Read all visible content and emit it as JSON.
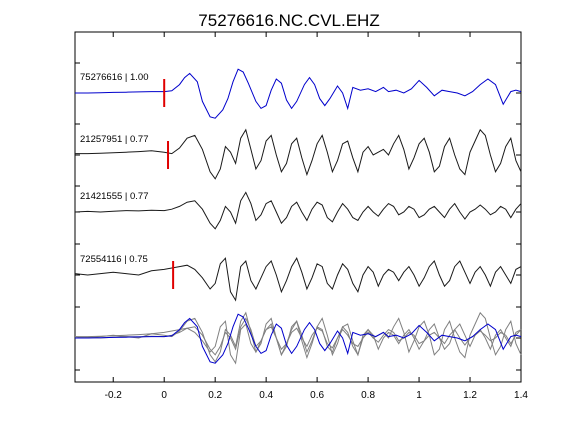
{
  "chart_data": {
    "type": "line",
    "title": "75276616.NC.CVL.EHZ",
    "xlabel": "",
    "ylabel": "",
    "xlim": [
      -0.35,
      1.4
    ],
    "x_ticks": [
      -0.2,
      0,
      0.2,
      0.4,
      0.6,
      0.8,
      1,
      1.2,
      1.4
    ],
    "x_tick_labels": [
      "-0.2",
      "0",
      "0.2",
      "0.4",
      "0.6",
      "0.8",
      "1",
      "1.2",
      "1.4"
    ],
    "grid": false,
    "legend": "none",
    "colors": {
      "reference": "#0000cc",
      "matched": "#1a1a1a",
      "overlay": "#808080",
      "pick": "#e00000"
    },
    "traces": [
      {
        "label": "75276616 | 1.00",
        "color": "#0000cc",
        "pick_time": 0.0,
        "x": [
          -0.35,
          -0.3,
          -0.25,
          -0.2,
          -0.15,
          -0.1,
          -0.05,
          0.0,
          0.03,
          0.06,
          0.08,
          0.1,
          0.13,
          0.15,
          0.18,
          0.2,
          0.23,
          0.25,
          0.27,
          0.29,
          0.31,
          0.33,
          0.36,
          0.38,
          0.4,
          0.42,
          0.44,
          0.46,
          0.48,
          0.5,
          0.52,
          0.55,
          0.57,
          0.59,
          0.61,
          0.63,
          0.65,
          0.68,
          0.7,
          0.72,
          0.74,
          0.77,
          0.8,
          0.83,
          0.86,
          0.88,
          0.91,
          0.94,
          0.97,
          1.0,
          1.03,
          1.06,
          1.09,
          1.12,
          1.15,
          1.18,
          1.21,
          1.24,
          1.27,
          1.3,
          1.33,
          1.36,
          1.38,
          1.4
        ],
        "y": [
          0.0,
          0.0,
          0.01,
          0.02,
          0.03,
          0.04,
          0.05,
          0.05,
          0.08,
          0.3,
          0.55,
          0.7,
          0.4,
          -0.3,
          -0.85,
          -0.9,
          -0.6,
          -0.2,
          0.4,
          0.85,
          0.75,
          0.35,
          -0.3,
          -0.55,
          -0.45,
          0.1,
          0.5,
          0.35,
          -0.25,
          -0.55,
          -0.3,
          0.3,
          0.55,
          0.3,
          -0.2,
          -0.45,
          -0.2,
          0.25,
          0.0,
          -0.55,
          0.2,
          0.1,
          0.15,
          0.05,
          0.2,
          0.05,
          0.1,
          0.0,
          0.15,
          0.45,
          0.2,
          -0.1,
          0.1,
          0.05,
          0.0,
          -0.1,
          0.05,
          0.3,
          0.5,
          0.3,
          -0.4,
          0.05,
          0.1,
          0.05
        ]
      },
      {
        "label": "21257951 | 0.77",
        "color": "#1a1a1a",
        "pick_time": 0.015,
        "x": [
          -0.35,
          -0.3,
          -0.25,
          -0.2,
          -0.15,
          -0.1,
          -0.05,
          0.0,
          0.03,
          0.06,
          0.09,
          0.12,
          0.15,
          0.18,
          0.2,
          0.22,
          0.24,
          0.26,
          0.28,
          0.3,
          0.32,
          0.34,
          0.36,
          0.38,
          0.4,
          0.42,
          0.44,
          0.46,
          0.48,
          0.5,
          0.52,
          0.54,
          0.56,
          0.58,
          0.6,
          0.62,
          0.64,
          0.66,
          0.68,
          0.7,
          0.72,
          0.74,
          0.76,
          0.78,
          0.8,
          0.82,
          0.84,
          0.86,
          0.88,
          0.9,
          0.92,
          0.94,
          0.96,
          0.98,
          1.0,
          1.02,
          1.04,
          1.06,
          1.08,
          1.1,
          1.12,
          1.14,
          1.16,
          1.18,
          1.2,
          1.22,
          1.24,
          1.26,
          1.28,
          1.3,
          1.32,
          1.34,
          1.36,
          1.38,
          1.4
        ],
        "y": [
          0.05,
          0.05,
          0.06,
          0.08,
          0.1,
          0.12,
          0.15,
          0.1,
          0.05,
          0.25,
          0.6,
          0.7,
          0.2,
          -0.6,
          -0.85,
          -0.5,
          0.3,
          0.1,
          -0.3,
          0.6,
          0.9,
          0.2,
          -0.5,
          -0.2,
          0.5,
          0.7,
          0.0,
          -0.6,
          -0.3,
          0.4,
          0.6,
          -0.1,
          -0.7,
          -0.2,
          0.4,
          0.7,
          0.1,
          -0.6,
          -0.2,
          0.4,
          0.5,
          -0.1,
          -0.6,
          0.1,
          0.3,
          0.0,
          0.1,
          0.2,
          0.0,
          0.4,
          0.7,
          0.2,
          -0.5,
          -0.1,
          0.4,
          0.6,
          0.1,
          -0.6,
          -0.4,
          0.3,
          0.6,
          0.0,
          -0.5,
          -0.7,
          0.1,
          0.5,
          0.9,
          0.7,
          0.0,
          -0.6,
          -0.3,
          0.3,
          0.6,
          -0.2,
          -0.6
        ]
      },
      {
        "label": "21421555 | 0.77",
        "color": "#1a1a1a",
        "pick_time": null,
        "x": [
          -0.35,
          -0.3,
          -0.25,
          -0.2,
          -0.15,
          -0.1,
          -0.05,
          0.0,
          0.03,
          0.06,
          0.09,
          0.12,
          0.15,
          0.18,
          0.2,
          0.22,
          0.24,
          0.26,
          0.28,
          0.3,
          0.32,
          0.34,
          0.36,
          0.38,
          0.4,
          0.42,
          0.44,
          0.46,
          0.48,
          0.5,
          0.52,
          0.54,
          0.56,
          0.58,
          0.6,
          0.62,
          0.64,
          0.66,
          0.68,
          0.7,
          0.72,
          0.74,
          0.76,
          0.78,
          0.8,
          0.82,
          0.84,
          0.86,
          0.88,
          0.9,
          0.92,
          0.94,
          0.96,
          0.98,
          1.0,
          1.02,
          1.04,
          1.06,
          1.08,
          1.1,
          1.12,
          1.14,
          1.16,
          1.18,
          1.2,
          1.22,
          1.24,
          1.26,
          1.28,
          1.3,
          1.32,
          1.34,
          1.36,
          1.38,
          1.4
        ],
        "y": [
          0.0,
          0.02,
          0.0,
          0.03,
          0.05,
          0.04,
          0.06,
          0.05,
          0.1,
          0.2,
          0.35,
          0.4,
          0.1,
          -0.4,
          -0.6,
          -0.3,
          0.2,
          0.0,
          -0.4,
          0.4,
          0.7,
          0.3,
          -0.3,
          -0.1,
          0.3,
          0.4,
          0.0,
          -0.4,
          -0.2,
          0.2,
          0.35,
          0.0,
          -0.3,
          0.1,
          0.35,
          0.25,
          -0.2,
          -0.35,
          0.0,
          0.3,
          0.1,
          -0.2,
          -0.3,
          0.0,
          0.2,
          0.0,
          -0.15,
          0.1,
          0.3,
          0.2,
          -0.1,
          0.0,
          0.2,
          0.1,
          -0.2,
          -0.1,
          0.1,
          0.2,
          0.0,
          -0.2,
          0.1,
          0.3,
          0.0,
          -0.25,
          0.0,
          0.1,
          0.25,
          0.1,
          -0.1,
          0.0,
          0.2,
          0.1,
          -0.2,
          0.1,
          0.3
        ]
      },
      {
        "label": "72554116 | 0.75",
        "color": "#1a1a1a",
        "pick_time": 0.035,
        "x": [
          -0.35,
          -0.3,
          -0.25,
          -0.2,
          -0.15,
          -0.1,
          -0.05,
          0.0,
          0.03,
          0.06,
          0.09,
          0.12,
          0.15,
          0.18,
          0.2,
          0.22,
          0.24,
          0.26,
          0.28,
          0.3,
          0.32,
          0.34,
          0.36,
          0.38,
          0.4,
          0.42,
          0.44,
          0.46,
          0.48,
          0.5,
          0.52,
          0.54,
          0.56,
          0.58,
          0.6,
          0.62,
          0.64,
          0.66,
          0.68,
          0.7,
          0.72,
          0.74,
          0.76,
          0.78,
          0.8,
          0.82,
          0.84,
          0.86,
          0.88,
          0.9,
          0.92,
          0.94,
          0.96,
          0.98,
          1.0,
          1.02,
          1.04,
          1.06,
          1.08,
          1.1,
          1.12,
          1.14,
          1.16,
          1.18,
          1.2,
          1.22,
          1.24,
          1.26,
          1.28,
          1.3,
          1.32,
          1.34,
          1.36,
          1.38,
          1.4
        ],
        "y": [
          0.05,
          0.0,
          0.05,
          0.1,
          0.05,
          0.0,
          0.15,
          0.2,
          0.25,
          0.3,
          0.35,
          0.2,
          -0.1,
          -0.5,
          -0.3,
          0.4,
          0.6,
          -0.6,
          -0.9,
          0.3,
          0.5,
          -0.2,
          -0.5,
          -0.1,
          0.3,
          0.5,
          0.0,
          -0.6,
          -0.2,
          0.3,
          0.6,
          0.1,
          -0.5,
          -0.1,
          0.4,
          0.3,
          -0.3,
          -0.5,
          0.0,
          0.4,
          0.2,
          -0.3,
          -0.6,
          0.0,
          0.3,
          0.1,
          -0.4,
          0.0,
          0.2,
          0.1,
          -0.2,
          0.1,
          0.3,
          0.0,
          -0.4,
          -0.1,
          0.3,
          0.5,
          0.0,
          -0.4,
          -0.2,
          0.3,
          0.5,
          0.1,
          -0.3,
          0.1,
          0.3,
          0.0,
          -0.4,
          0.1,
          0.3,
          0.0,
          -0.3,
          0.2,
          0.3
        ]
      }
    ]
  }
}
